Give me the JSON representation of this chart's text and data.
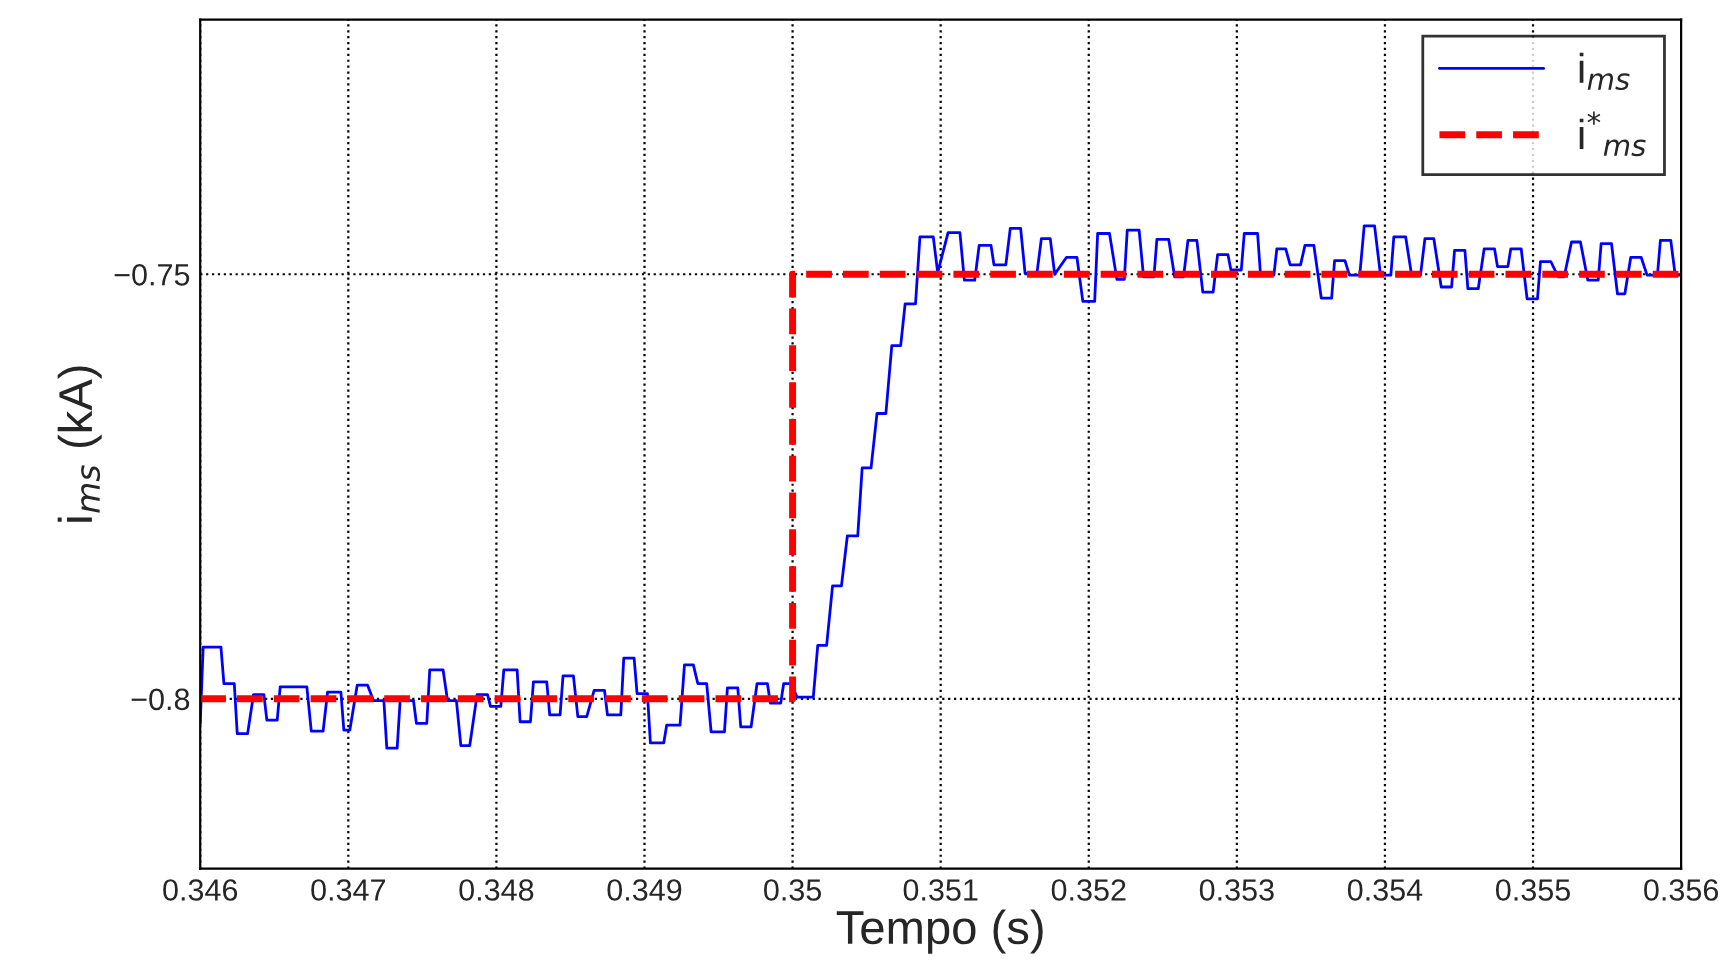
{
  "chart_data": {
    "type": "line",
    "xlabel": "Tempo (s)",
    "ylabel": "i$_{ms}$ (kA)",
    "xlim": [
      0.346,
      0.356
    ],
    "ylim": [
      -0.82,
      -0.72
    ],
    "xticks": [
      0.346,
      0.347,
      0.348,
      0.349,
      0.35,
      0.351,
      0.352,
      0.353,
      0.354,
      0.355,
      0.356
    ],
    "yticks": [
      {
        "value": -0.8,
        "label": "−0.8"
      },
      {
        "value": -0.75,
        "label": "−0.75"
      }
    ],
    "grid": true,
    "legend": "top right",
    "series": [
      {
        "name": "i$_{ms}$",
        "color": "#0000ff",
        "line_style": "solid",
        "x": [
          0.346,
          0.34602,
          0.34607,
          0.34614,
          0.34616,
          0.34623,
          0.34625,
          0.34632,
          0.34636,
          0.34643,
          0.34645,
          0.34652,
          0.34654,
          0.34672,
          0.34675,
          0.34683,
          0.34686,
          0.34695,
          0.34697,
          0.34701,
          0.34706,
          0.34713,
          0.34717,
          0.34724,
          0.34726,
          0.34733,
          0.34735,
          0.34744,
          0.34746,
          0.34753,
          0.34755,
          0.34764,
          0.34767,
          0.34773,
          0.34776,
          0.34782,
          0.34787,
          0.34794,
          0.34796,
          0.34803,
          0.34805,
          0.34814,
          0.34816,
          0.34823,
          0.34825,
          0.34834,
          0.34836,
          0.34843,
          0.34845,
          0.34852,
          0.34855,
          0.34861,
          0.34866,
          0.34873,
          0.34875,
          0.34884,
          0.34886,
          0.34893,
          0.34895,
          0.34902,
          0.34904,
          0.34913,
          0.34915,
          0.34924,
          0.34927,
          0.34933,
          0.34936,
          0.34942,
          0.34945,
          0.34954,
          0.34956,
          0.34963,
          0.34965,
          0.34972,
          0.34976,
          0.34983,
          0.34985,
          0.34992,
          0.34994,
          0.34999,
          0.35003,
          0.35012,
          0.35014,
          0.35017,
          0.35023,
          0.35027,
          0.35033,
          0.35037,
          0.35044,
          0.35047,
          0.35053,
          0.35057,
          0.35063,
          0.35067,
          0.35073,
          0.35076,
          0.35083,
          0.35086,
          0.35095,
          0.35098,
          0.35105,
          0.35113,
          0.35116,
          0.35123,
          0.35126,
          0.35134,
          0.35136,
          0.35144,
          0.35147,
          0.35154,
          0.35157,
          0.35165,
          0.35168,
          0.35174,
          0.35177,
          0.35185,
          0.35192,
          0.35196,
          0.35204,
          0.35206,
          0.35214,
          0.35219,
          0.35224,
          0.35226,
          0.35234,
          0.35237,
          0.35244,
          0.35246,
          0.35254,
          0.35258,
          0.35264,
          0.35267,
          0.35273,
          0.35277,
          0.35284,
          0.35287,
          0.35294,
          0.35296,
          0.35303,
          0.35305,
          0.35314,
          0.35316,
          0.35325,
          0.35327,
          0.35333,
          0.35336,
          0.35343,
          0.35346,
          0.35352,
          0.35357,
          0.35364,
          0.35366,
          0.35373,
          0.35376,
          0.35383,
          0.35386,
          0.35393,
          0.35397,
          0.35404,
          0.35406,
          0.35414,
          0.35418,
          0.35424,
          0.35427,
          0.35433,
          0.35438,
          0.35445,
          0.35447,
          0.35454,
          0.35456,
          0.35463,
          0.35467,
          0.35474,
          0.35476,
          0.35483,
          0.35485,
          0.35492,
          0.35496,
          0.35503,
          0.35505,
          0.35512,
          0.35517,
          0.35521,
          0.35526,
          0.35532,
          0.35537,
          0.35544,
          0.35546,
          0.35553,
          0.35557,
          0.35562,
          0.35566,
          0.35573,
          0.35577,
          0.35584,
          0.35586,
          0.35593,
          0.35596,
          0.356
        ],
        "values": [
          -0.8029,
          -0.7939,
          -0.7939,
          -0.7939,
          -0.7982,
          -0.7982,
          -0.8041,
          -0.8041,
          -0.7995,
          -0.7995,
          -0.8025,
          -0.8025,
          -0.7986,
          -0.7986,
          -0.8038,
          -0.8038,
          -0.7992,
          -0.7992,
          -0.8037,
          -0.8037,
          -0.7984,
          -0.7984,
          -0.8002,
          -0.8002,
          -0.8058,
          -0.8058,
          -0.8002,
          -0.8002,
          -0.8029,
          -0.8029,
          -0.7966,
          -0.7966,
          -0.8002,
          -0.8002,
          -0.8055,
          -0.8055,
          -0.7995,
          -0.7995,
          -0.8009,
          -0.8009,
          -0.7966,
          -0.7966,
          -0.8027,
          -0.8027,
          -0.798,
          -0.798,
          -0.8019,
          -0.8019,
          -0.7973,
          -0.7973,
          -0.8021,
          -0.8021,
          -0.799,
          -0.799,
          -0.8019,
          -0.8019,
          -0.7952,
          -0.7952,
          -0.7994,
          -0.7994,
          -0.8052,
          -0.8052,
          -0.8031,
          -0.8031,
          -0.796,
          -0.796,
          -0.7982,
          -0.7982,
          -0.8039,
          -0.8039,
          -0.7987,
          -0.7987,
          -0.8033,
          -0.8033,
          -0.7982,
          -0.7982,
          -0.8005,
          -0.8005,
          -0.7982,
          -0.7982,
          -0.7998,
          -0.7998,
          -0.7998,
          -0.7937,
          -0.7937,
          -0.7867,
          -0.7867,
          -0.7808,
          -0.7808,
          -0.7728,
          -0.7728,
          -0.7664,
          -0.7664,
          -0.7584,
          -0.7584,
          -0.7535,
          -0.7535,
          -0.7456,
          -0.7456,
          -0.7498,
          -0.7451,
          -0.7451,
          -0.7507,
          -0.7507,
          -0.7466,
          -0.7466,
          -0.7489,
          -0.7489,
          -0.7446,
          -0.7446,
          -0.7499,
          -0.7499,
          -0.7458,
          -0.7458,
          -0.75,
          -0.748,
          -0.748,
          -0.7532,
          -0.7532,
          -0.7452,
          -0.7452,
          -0.7506,
          -0.7506,
          -0.7448,
          -0.7448,
          -0.7503,
          -0.7503,
          -0.7459,
          -0.7459,
          -0.7503,
          -0.7503,
          -0.746,
          -0.746,
          -0.7521,
          -0.7521,
          -0.7477,
          -0.7477,
          -0.7495,
          -0.7495,
          -0.7452,
          -0.7452,
          -0.7501,
          -0.7501,
          -0.747,
          -0.747,
          -0.7489,
          -0.7489,
          -0.7466,
          -0.7466,
          -0.7528,
          -0.7528,
          -0.7484,
          -0.7484,
          -0.7501,
          -0.7501,
          -0.7443,
          -0.7443,
          -0.7501,
          -0.7501,
          -0.7456,
          -0.7456,
          -0.7501,
          -0.7501,
          -0.7458,
          -0.7458,
          -0.7515,
          -0.7515,
          -0.7472,
          -0.7472,
          -0.7517,
          -0.7517,
          -0.747,
          -0.747,
          -0.7491,
          -0.7491,
          -0.747,
          -0.747,
          -0.7529,
          -0.7529,
          -0.7485,
          -0.7485,
          -0.7503,
          -0.7503,
          -0.7462,
          -0.7462,
          -0.7507,
          -0.7507,
          -0.7464,
          -0.7464,
          -0.7523,
          -0.7523,
          -0.748,
          -0.748,
          -0.7501,
          -0.7501,
          -0.746,
          -0.746,
          -0.7501,
          -0.7501
        ]
      },
      {
        "name": "i$^{*}$$_{ms}$",
        "color": "#ff0000",
        "line_style": "dashed",
        "x": [
          0.346,
          0.35,
          0.35,
          0.356
        ],
        "values": [
          -0.8,
          -0.8,
          -0.75,
          -0.75
        ]
      }
    ]
  }
}
